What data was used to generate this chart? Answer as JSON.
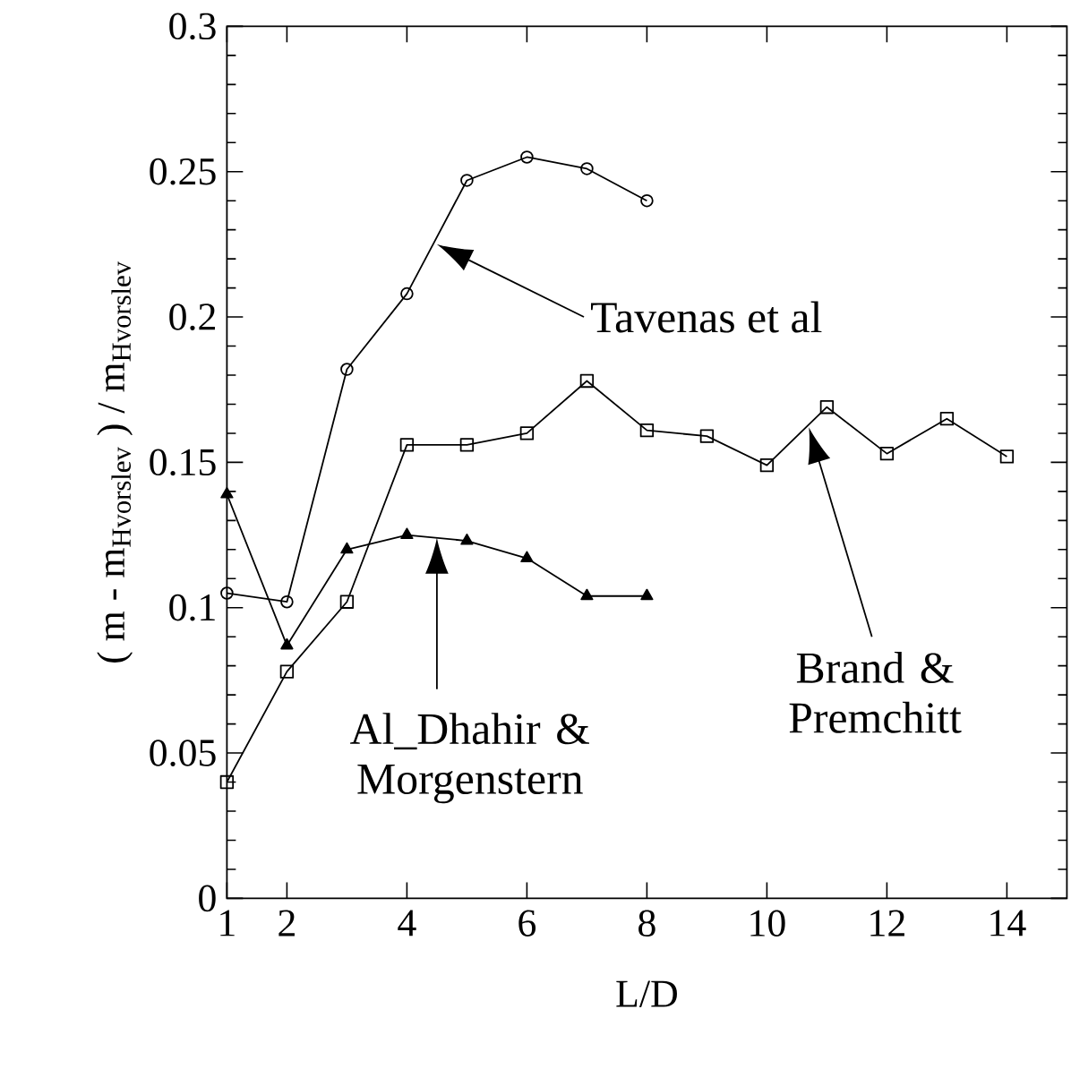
{
  "chart_data": {
    "type": "line",
    "xlabel": "L/D",
    "ylabel": "( m - m$_{Hvorslev}$ ) / m$_{Hvorslev}$",
    "xlim": [
      1,
      15
    ],
    "ylim": [
      0,
      0.3
    ],
    "xticks": [
      1,
      2,
      4,
      6,
      8,
      10,
      12,
      14
    ],
    "yticks": [
      0,
      0.05,
      0.1,
      0.15,
      0.2,
      0.25,
      0.3
    ],
    "series": [
      {
        "color": "#000000",
        "marker": "circle",
        "x": [
          1,
          2,
          3,
          4,
          5,
          6,
          7,
          8
        ],
        "values": [
          0.105,
          0.102,
          0.182,
          0.208,
          0.247,
          0.255,
          0.251,
          0.24
        ]
      },
      {
        "color": "#000000",
        "marker": "square",
        "x": [
          1,
          2,
          3,
          4,
          5,
          6,
          7,
          8,
          9,
          10,
          11,
          12,
          13,
          14
        ],
        "values": [
          0.04,
          0.078,
          0.102,
          0.156,
          0.156,
          0.16,
          0.178,
          0.161,
          0.159,
          0.149,
          0.169,
          0.153,
          0.165,
          0.152
        ]
      },
      {
        "color": "#000000",
        "marker": "triangle",
        "x": [
          1,
          2,
          3,
          4,
          5,
          6,
          7,
          8
        ],
        "values": [
          0.139,
          0.087,
          0.12,
          0.125,
          0.123,
          0.117,
          0.104,
          0.104
        ]
      }
    ],
    "annotations": [
      "Tavenas et al",
      "Al_Dhahir & Morgenstern",
      "Brand & Premchitt"
    ]
  }
}
